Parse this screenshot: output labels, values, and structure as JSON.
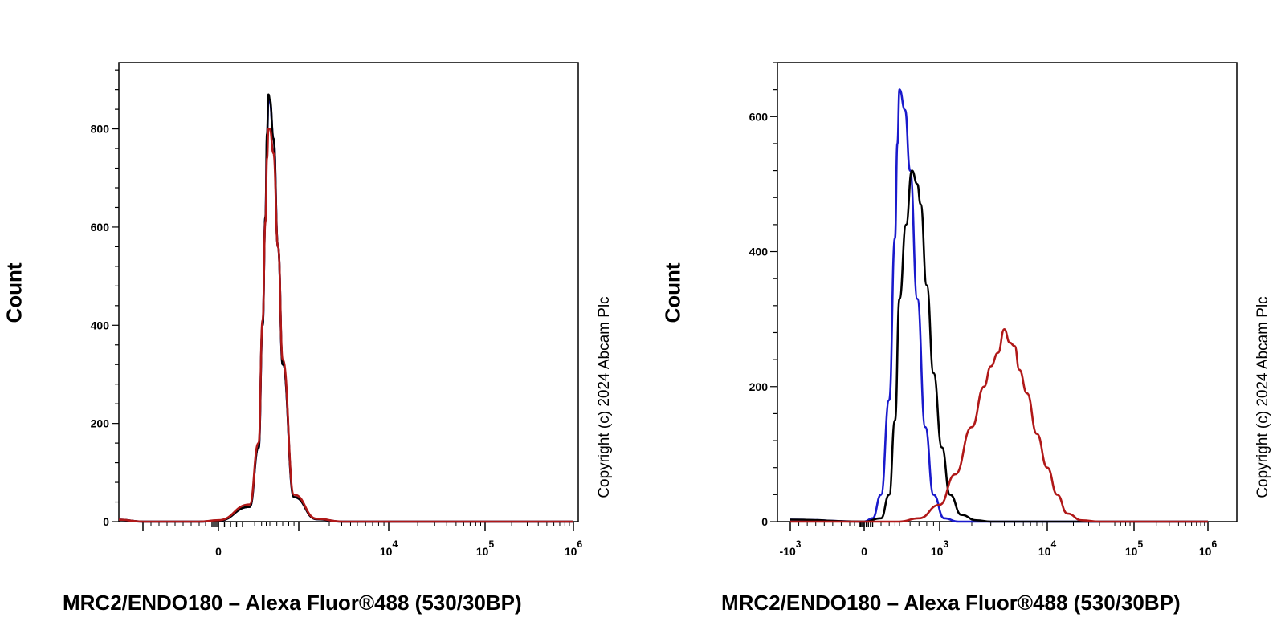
{
  "chart_data": [
    {
      "type": "line",
      "title": "",
      "xlabel": "MRC2/ENDO180 – Alexa Fluor®488 (530/30BP)",
      "ylabel": "Count",
      "ylim": [
        0,
        935
      ],
      "y_ticks": [
        0,
        200,
        400,
        600,
        800
      ],
      "x_scale": "biexponential",
      "x_tick_labels": [
        {
          "base": "0",
          "exp": "",
          "value": 0
        },
        {
          "base": "10",
          "exp": "4",
          "value": 10000
        },
        {
          "base": "10",
          "exp": "5",
          "value": 100000
        },
        {
          "base": "10",
          "exp": "6",
          "value": 1000000
        }
      ],
      "copyright": "Copyright (c) 2024 Abcam Plc",
      "series": [
        {
          "color": "#1a1acc",
          "x": [
            -3000,
            -1000,
            -300,
            0,
            150,
            250,
            320,
            380,
            420,
            460,
            500,
            550,
            620,
            700,
            900,
            1500,
            3000,
            10000,
            100000,
            1000000
          ],
          "y": [
            4,
            0,
            0,
            2,
            30,
            150,
            400,
            620,
            780,
            860,
            855,
            780,
            560,
            320,
            50,
            5,
            0,
            0,
            0,
            0
          ]
        },
        {
          "color": "#000000",
          "x": [
            -3000,
            -1000,
            -300,
            0,
            150,
            250,
            320,
            380,
            420,
            460,
            500,
            550,
            620,
            700,
            900,
            1500,
            3000,
            10000,
            100000,
            1000000
          ],
          "y": [
            4,
            0,
            0,
            2,
            30,
            150,
            400,
            620,
            790,
            870,
            860,
            780,
            560,
            320,
            50,
            5,
            0,
            0,
            0,
            0
          ]
        },
        {
          "color": "#b01818",
          "x": [
            -3000,
            -1000,
            -300,
            0,
            150,
            250,
            320,
            380,
            420,
            460,
            500,
            550,
            620,
            700,
            900,
            1500,
            3000,
            10000,
            100000,
            1000000
          ],
          "y": [
            4,
            0,
            0,
            3,
            35,
            160,
            410,
            610,
            740,
            800,
            800,
            750,
            560,
            330,
            55,
            6,
            0,
            0,
            0,
            0
          ]
        }
      ]
    },
    {
      "type": "line",
      "title": "",
      "xlabel": "MRC2/ENDO180 – Alexa Fluor®488 (530/30BP)",
      "ylabel": "Count",
      "ylim": [
        0,
        680
      ],
      "y_ticks": [
        0,
        200,
        400,
        600
      ],
      "x_scale": "biexponential",
      "x_tick_labels": [
        {
          "base": "-10",
          "exp": "3",
          "value": -1000
        },
        {
          "base": "0",
          "exp": "",
          "value": 0
        },
        {
          "base": "10",
          "exp": "3",
          "value": 1000
        },
        {
          "base": "10",
          "exp": "4",
          "value": 10000
        },
        {
          "base": "10",
          "exp": "5",
          "value": 100000
        },
        {
          "base": "10",
          "exp": "6",
          "value": 1000000
        }
      ],
      "copyright": "Copyright (c) 2024 Abcam Plc",
      "series": [
        {
          "color": "#1a1acc",
          "x": [
            -1000,
            0,
            100,
            200,
            300,
            400,
            450,
            500,
            550,
            600,
            680,
            780,
            900,
            1100,
            1500,
            3000,
            1000000
          ],
          "y": [
            3,
            0,
            5,
            40,
            180,
            420,
            560,
            640,
            610,
            520,
            330,
            140,
            40,
            5,
            0,
            0,
            0
          ]
        },
        {
          "color": "#000000",
          "x": [
            -1000,
            0,
            200,
            300,
            400,
            500,
            560,
            620,
            680,
            720,
            800,
            900,
            1050,
            1250,
            1600,
            2200,
            3000,
            1000000
          ],
          "y": [
            3,
            0,
            5,
            40,
            150,
            330,
            440,
            520,
            500,
            470,
            350,
            220,
            110,
            40,
            10,
            2,
            0,
            0
          ]
        },
        {
          "color": "#b01818",
          "x": [
            -1000,
            0,
            500,
            700,
            1000,
            1400,
            2000,
            2600,
            3000,
            3500,
            4000,
            4500,
            5000,
            5500,
            6500,
            8000,
            10000,
            13000,
            17000,
            25000,
            40000,
            100000,
            1000000
          ],
          "y": [
            0,
            0,
            0,
            5,
            25,
            70,
            140,
            200,
            230,
            250,
            285,
            265,
            260,
            225,
            190,
            130,
            80,
            40,
            12,
            2,
            0,
            0,
            0
          ]
        }
      ]
    }
  ]
}
